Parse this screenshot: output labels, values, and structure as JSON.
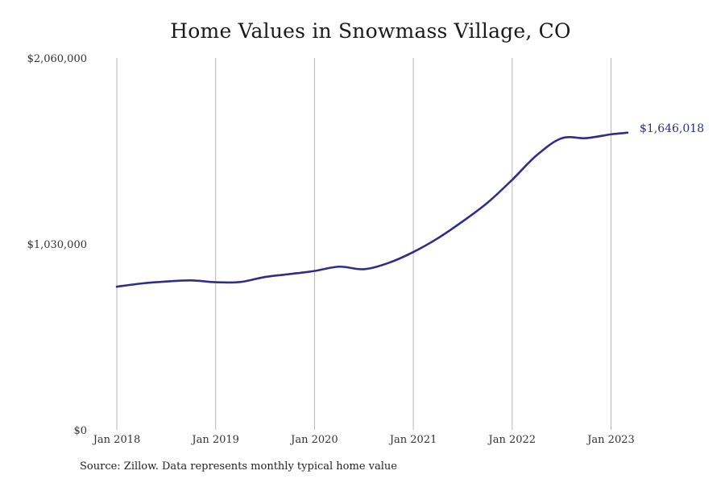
{
  "chart_data": {
    "type": "line",
    "title": "Home Values in Snowmass Village, CO",
    "xlabel": "",
    "ylabel": "",
    "ylim": [
      0,
      2060000
    ],
    "y_ticks": [
      {
        "value": 0,
        "label": "$0"
      },
      {
        "value": 1030000,
        "label": "$1,030,000"
      },
      {
        "value": 2060000,
        "label": "$2,060,000"
      }
    ],
    "x_ticks": [
      {
        "value": "2018-01",
        "label": "Jan 2018"
      },
      {
        "value": "2019-01",
        "label": "Jan 2019"
      },
      {
        "value": "2020-01",
        "label": "Jan 2020"
      },
      {
        "value": "2021-01",
        "label": "Jan 2021"
      },
      {
        "value": "2022-01",
        "label": "Jan 2022"
      },
      {
        "value": "2023-01",
        "label": "Jan 2023"
      }
    ],
    "xlim": [
      "2018-01",
      "2023-10"
    ],
    "grid": "vertical",
    "legend": "none",
    "line_color": "#2e2e8a",
    "series": [
      {
        "x": [
          "2018-01",
          "2018-04",
          "2018-07",
          "2018-10",
          "2019-01",
          "2019-04",
          "2019-07",
          "2019-10",
          "2020-01",
          "2020-04",
          "2020-07",
          "2020-10",
          "2021-01",
          "2021-04",
          "2021-07",
          "2021-10",
          "2022-01",
          "2022-04",
          "2022-07",
          "2022-10",
          "2023-01",
          "2023-03"
        ],
        "values": [
          793000,
          811000,
          822000,
          828000,
          818000,
          819000,
          847000,
          863000,
          880000,
          904000,
          890000,
          925000,
          985000,
          1062000,
          1155000,
          1258000,
          1385000,
          1522000,
          1615000,
          1616000,
          1637000,
          1646018
        ]
      }
    ],
    "end_label": "$1,646,018"
  },
  "footer": {
    "source": "Source: Zillow. Data represents monthly typical home value"
  }
}
